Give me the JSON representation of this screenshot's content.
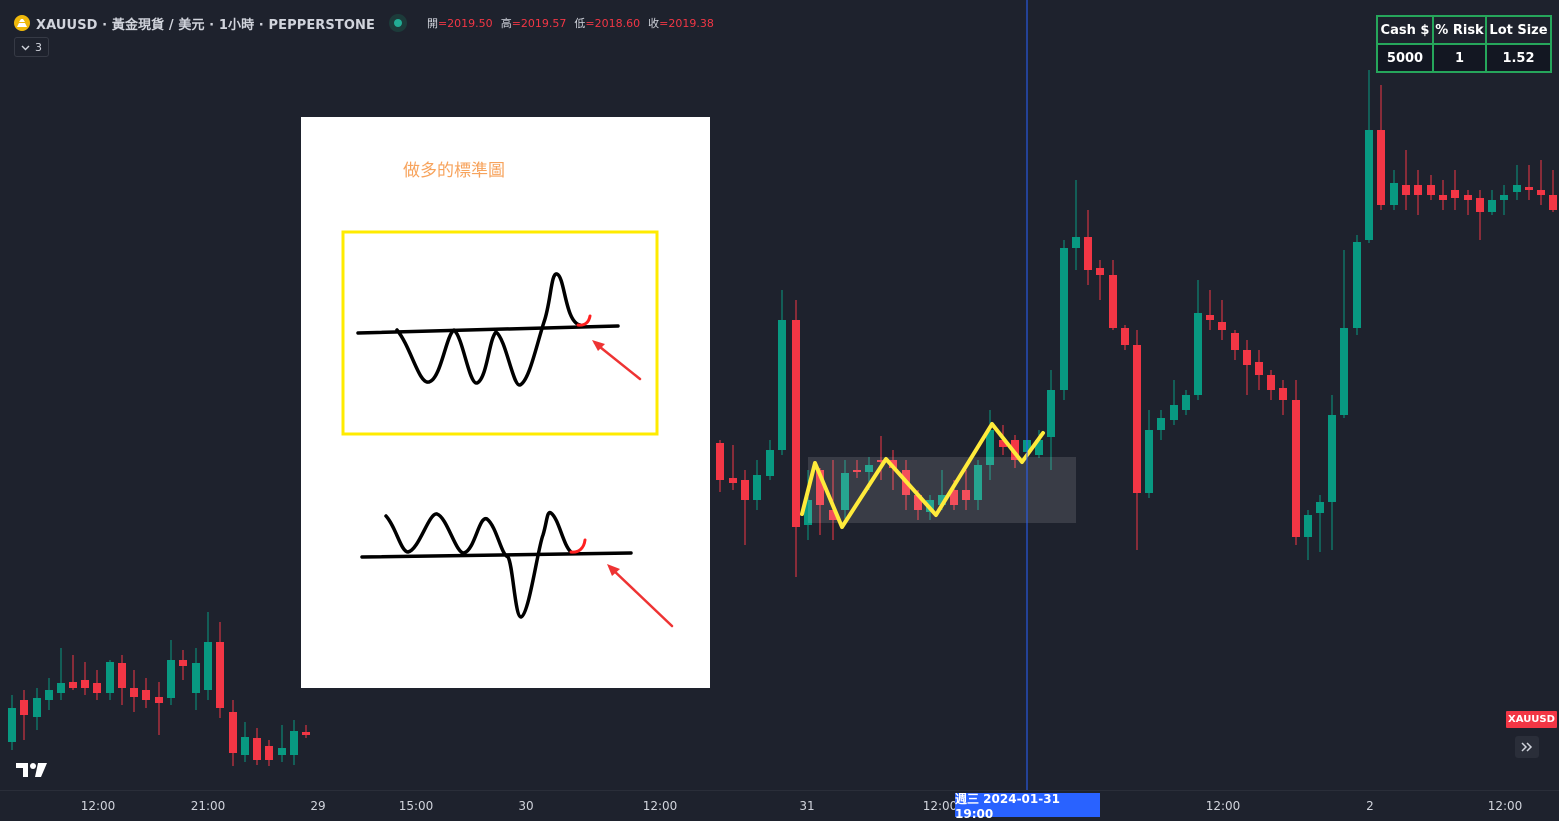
{
  "header": {
    "symbol_title": "XAUUSD · 黃金現貨 / 美元 · 1小時 · PEPPERSTONE",
    "ohlc": [
      {
        "label": "開",
        "value": "=2019.50"
      },
      {
        "label": "高",
        "value": "=2019.57"
      },
      {
        "label": "低",
        "value": "=2018.60"
      },
      {
        "label": "收",
        "value": "=2019.38"
      }
    ],
    "indicator_count": "3"
  },
  "risk_table": {
    "headers": [
      "Cash $",
      "% Risk",
      "Lot Size"
    ],
    "values": [
      "5000",
      "1",
      "1.52"
    ]
  },
  "note": {
    "title": "做多的標準圖"
  },
  "time_axis": {
    "ticks": [
      "12:00",
      "21:00",
      "29",
      "15:00",
      "30",
      "12:00",
      "31",
      "12:00",
      "12:00",
      "2",
      "12:00"
    ],
    "cursor_label": "週三 2024-01-31  19:00"
  },
  "symbol_badge": "XAUUSD",
  "goto_realtime_icon": "double-chevron-right-icon",
  "colors": {
    "background": "#1e222d",
    "up": "#089981",
    "down": "#f23645",
    "cursor": "#2962ff",
    "annotation_yellow": "#ffeb3b",
    "table_border": "#26a65b"
  }
}
